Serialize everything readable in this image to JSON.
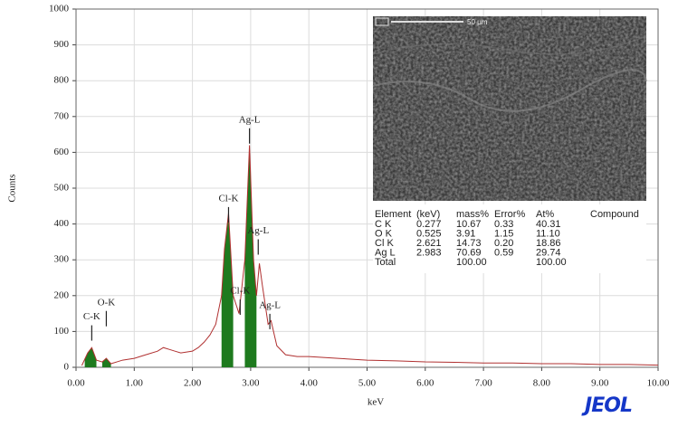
{
  "chart_data": {
    "type": "line",
    "xlabel": "keV",
    "ylabel": "Counts",
    "xlim": [
      0,
      10
    ],
    "ylim": [
      0,
      1000
    ],
    "xticks": [
      {
        "value": 0,
        "label": "0.00"
      },
      {
        "value": 1,
        "label": "1.00"
      },
      {
        "value": 2,
        "label": "2.00"
      },
      {
        "value": 3,
        "label": "3.00"
      },
      {
        "value": 4,
        "label": "4.00"
      },
      {
        "value": 5,
        "label": "5.00"
      },
      {
        "value": 6,
        "label": "6.00"
      },
      {
        "value": 7,
        "label": "7.00"
      },
      {
        "value": 8,
        "label": "8.00"
      },
      {
        "value": 9,
        "label": "9.00"
      },
      {
        "value": 10,
        "label": "10.00"
      }
    ],
    "yticks": [
      0,
      100,
      200,
      300,
      400,
      500,
      600,
      700,
      800,
      900,
      1000
    ],
    "grid": true,
    "x": [
      0.1,
      0.2,
      0.27,
      0.35,
      0.45,
      0.52,
      0.6,
      0.7,
      0.8,
      1.0,
      1.2,
      1.4,
      1.5,
      1.6,
      1.7,
      1.8,
      2.0,
      2.1,
      2.2,
      2.3,
      2.4,
      2.5,
      2.55,
      2.62,
      2.7,
      2.8,
      2.9,
      2.98,
      3.05,
      3.1,
      3.15,
      3.2,
      3.3,
      3.35,
      3.45,
      3.6,
      3.8,
      4.0,
      4.5,
      5.0,
      5.5,
      6.0,
      6.5,
      7.0,
      7.5,
      8.0,
      8.5,
      9.0,
      9.5,
      10.0
    ],
    "series": [
      {
        "color": "#b03030",
        "values": [
          5,
          40,
          55,
          20,
          15,
          25,
          10,
          15,
          20,
          25,
          35,
          45,
          55,
          50,
          45,
          40,
          45,
          55,
          70,
          90,
          120,
          200,
          330,
          430,
          200,
          150,
          300,
          620,
          300,
          200,
          290,
          230,
          120,
          130,
          60,
          35,
          30,
          30,
          25,
          20,
          18,
          15,
          14,
          12,
          12,
          10,
          10,
          8,
          8,
          6
        ]
      }
    ],
    "fill_color": "#1e7a1e",
    "fill_regions": [
      [
        0.15,
        0.35
      ],
      [
        0.45,
        0.6
      ],
      [
        2.5,
        2.7
      ],
      [
        2.9,
        3.1
      ]
    ],
    "annotations": [
      {
        "text": "C-K",
        "x": 0.27,
        "y": 140
      },
      {
        "text": "O-K",
        "x": 0.52,
        "y": 180
      },
      {
        "text": "Cl-K",
        "x": 2.62,
        "y": 470
      },
      {
        "text": "Ag-L",
        "x": 2.98,
        "y": 690
      },
      {
        "text": "Ag-L",
        "x": 3.13,
        "y": 380
      },
      {
        "text": "Cl-K",
        "x": 2.82,
        "y": 212
      },
      {
        "text": "Ag-L",
        "x": 3.33,
        "y": 172
      }
    ]
  },
  "inset": {
    "scale_bar": "50 μm",
    "table": {
      "header": [
        "Element",
        "(keV)",
        "mass%",
        "Error%",
        "At%",
        "Compound"
      ],
      "rows": [
        [
          "C  K",
          "0.277",
          "10.67",
          "0.33",
          "40.31"
        ],
        [
          "O  K",
          "0.525",
          "3.91",
          "1.15",
          "11.10"
        ],
        [
          "Cl K",
          "2.621",
          "14.73",
          "0.20",
          "18.86"
        ],
        [
          "Ag L",
          "2.983",
          "70.69",
          "0.59",
          "29.74"
        ]
      ],
      "total": {
        "label": "Total",
        "mass": "100.00",
        "at": "100.00"
      }
    }
  },
  "logo": "JEOL"
}
